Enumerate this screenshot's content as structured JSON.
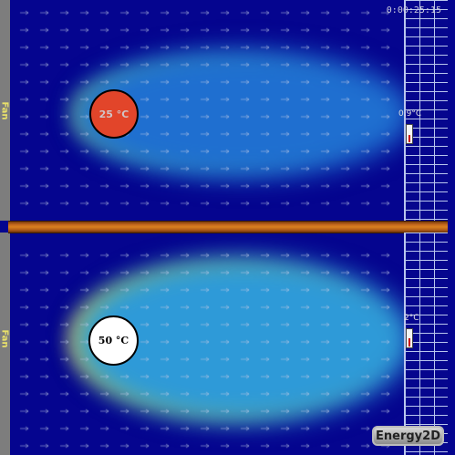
{
  "timer": "0:00:25:15",
  "fans": [
    {
      "label": "Fan"
    },
    {
      "label": "Fan"
    }
  ],
  "objects": {
    "top_disk": {
      "label": "25 °C",
      "color": "#e2452a"
    },
    "bottom_disk": {
      "label": "50 °C",
      "color": "#ffffff"
    }
  },
  "thermometers": [
    {
      "reading": "0.9°C",
      "level": 0.45
    },
    {
      "reading": "2°C",
      "level": 0.5
    }
  ],
  "brand": {
    "label": "Energy2D"
  },
  "colors": {
    "background": "#05058f",
    "wall_lines": "#b9c6ee",
    "divider": "#c86b1d"
  }
}
